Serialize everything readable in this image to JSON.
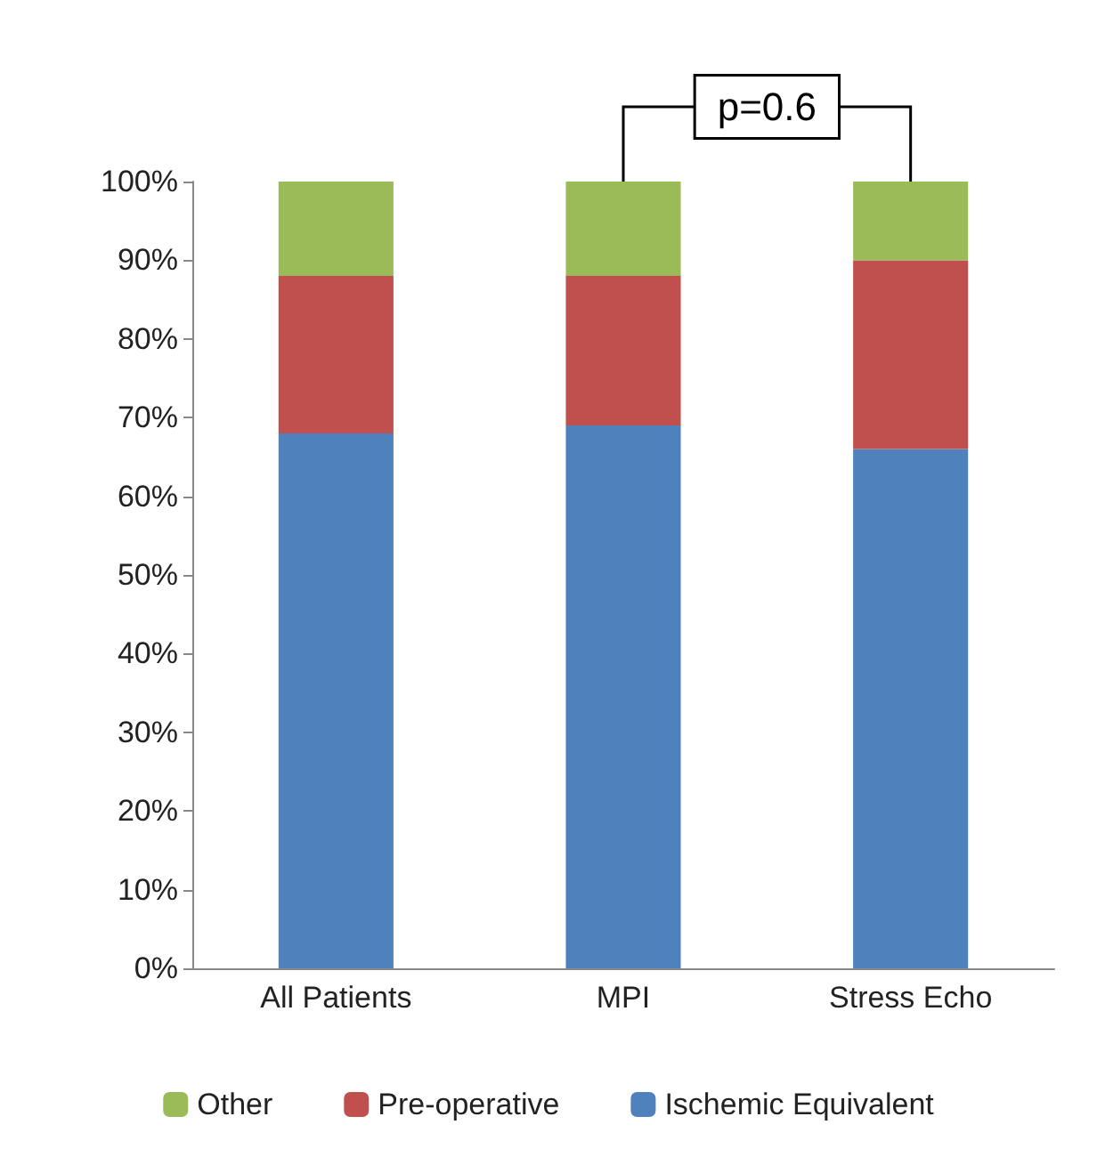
{
  "chart_data": {
    "type": "bar",
    "stacked": true,
    "categories": [
      "All Patients",
      "MPI",
      "Stress Echo"
    ],
    "series": [
      {
        "name": "Ischemic Equivalent",
        "color": "#4f81bd",
        "values": [
          68,
          69,
          66
        ]
      },
      {
        "name": "Pre-operative",
        "color": "#c0504d",
        "values": [
          20,
          19,
          24
        ]
      },
      {
        "name": "Other",
        "color": "#9bbb59",
        "values": [
          12,
          12,
          10
        ]
      }
    ],
    "ylim": [
      0,
      100
    ],
    "yticks": [
      {
        "value": 0,
        "label": "0%"
      },
      {
        "value": 10,
        "label": "10%"
      },
      {
        "value": 20,
        "label": "20%"
      },
      {
        "value": 30,
        "label": "30%"
      },
      {
        "value": 40,
        "label": "40%"
      },
      {
        "value": 50,
        "label": "50%"
      },
      {
        "value": 60,
        "label": "60%"
      },
      {
        "value": 70,
        "label": "70%"
      },
      {
        "value": 80,
        "label": "80%"
      },
      {
        "value": 90,
        "label": "90%"
      },
      {
        "value": 100,
        "label": "100%"
      }
    ],
    "grid": false,
    "legend": "bottom",
    "annotations": [
      {
        "text": "p=0.6",
        "x": "MPI",
        "y": 100
      }
    ]
  }
}
